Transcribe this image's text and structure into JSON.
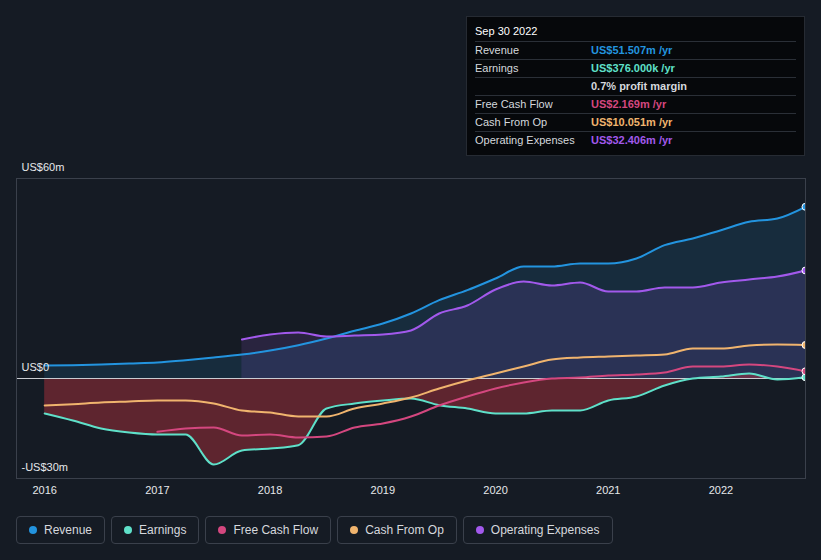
{
  "chart_data": {
    "type": "line",
    "x": [
      2016,
      2016.25,
      2016.5,
      2016.75,
      2017,
      2017.25,
      2017.5,
      2017.75,
      2018,
      2018.25,
      2018.5,
      2018.75,
      2019,
      2019.25,
      2019.5,
      2019.75,
      2020,
      2020.25,
      2020.5,
      2020.75,
      2021,
      2021.25,
      2021.5,
      2021.75,
      2022,
      2022.25,
      2022.5,
      2022.75
    ],
    "series": [
      {
        "name": "Revenue",
        "color": "#2394df",
        "values": [
          3.9,
          4.0,
          4.2,
          4.5,
          4.8,
          5.5,
          6.3,
          7.2,
          8.4,
          10,
          12,
          14.3,
          16.5,
          19.5,
          23.5,
          26.5,
          30,
          33.6,
          33.6,
          34.5,
          34.5,
          36,
          40,
          42,
          44.5,
          47,
          48,
          51.507
        ]
      },
      {
        "name": "Earnings",
        "color": "#5fe0c9",
        "values": [
          -10.5,
          -12.6,
          -15,
          -16.2,
          -16.8,
          -16.8,
          -25.8,
          -21.6,
          -21,
          -20,
          -9,
          -7.5,
          -6.6,
          -6,
          -8,
          -9,
          -10.5,
          -10.5,
          -9.6,
          -9.6,
          -6.6,
          -5.4,
          -2.1,
          0,
          0.6,
          1.5,
          -0.3,
          0.376
        ]
      },
      {
        "name": "Free Cash Flow",
        "color": "#d4477f",
        "values": [
          null,
          null,
          null,
          null,
          -16,
          -15,
          -14.7,
          -17.1,
          -16.8,
          -17.7,
          -17.4,
          -14.7,
          -13.5,
          -11.4,
          -8.1,
          -5.4,
          -3,
          -1.2,
          0,
          0.3,
          0.9,
          1.2,
          1.8,
          3.6,
          3.6,
          4.2,
          3.6,
          2.169
        ]
      },
      {
        "name": "Cash From Op",
        "color": "#f0b46e",
        "values": [
          -8.1,
          -7.7,
          -7.2,
          -6.9,
          -6.6,
          -6.6,
          -7.5,
          -9.6,
          -10.2,
          -11.4,
          -11.4,
          -9,
          -7.5,
          -5.7,
          -3,
          -0.6,
          1.5,
          3.6,
          5.7,
          6.3,
          6.6,
          6.9,
          7.2,
          9,
          9,
          9.9,
          10.2,
          10.051
        ]
      },
      {
        "name": "Operating Expenses",
        "color": "#a259ec",
        "values": [
          null,
          null,
          null,
          null,
          null,
          null,
          null,
          11.7,
          13.2,
          13.8,
          12.6,
          12.9,
          13.2,
          14.4,
          19.5,
          21.9,
          26.7,
          29.1,
          27.9,
          28.8,
          26.1,
          26.1,
          27.3,
          27.3,
          28.8,
          29.7,
          30.6,
          32.406
        ]
      }
    ],
    "xlim": [
      2015.75,
      2022.75
    ],
    "xticks": [
      2016,
      2017,
      2018,
      2019,
      2020,
      2021,
      2022
    ],
    "ylim": [
      -30,
      60
    ],
    "yticks": [
      {
        "value": -30,
        "label": "-US$30m"
      },
      {
        "value": 0,
        "label": "US$0"
      },
      {
        "value": 60,
        "label": "US$60m"
      }
    ],
    "grid": true,
    "legend": "bottom",
    "annotation": {
      "title": "Sep 30 2022",
      "rows": [
        {
          "label": "Revenue",
          "value": "US$51.507m /yr"
        },
        {
          "label": "Earnings",
          "value": "US$376.000k /yr"
        },
        {
          "value": "0.7% profit margin"
        },
        {
          "label": "Free Cash Flow",
          "value": "US$2.169m /yr"
        },
        {
          "label": "Cash From Op",
          "value": "US$10.051m /yr"
        },
        {
          "label": "Operating Expenses",
          "value": "US$32.406m /yr"
        }
      ]
    }
  }
}
